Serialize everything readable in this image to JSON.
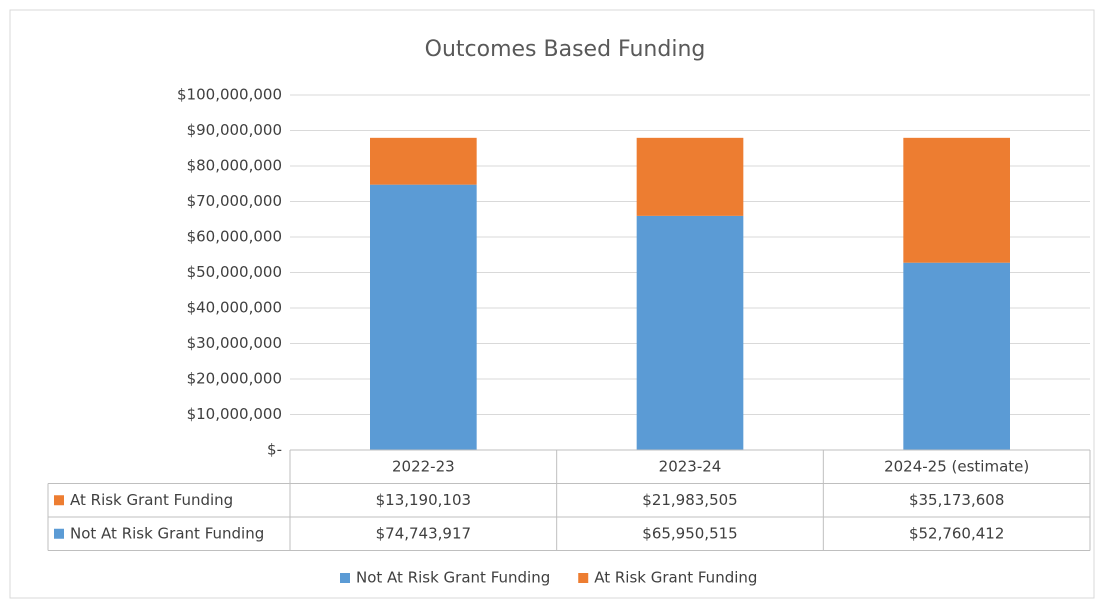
{
  "chart_data": {
    "type": "bar",
    "stacked": true,
    "title": "Outcomes Based Funding",
    "categories": [
      "2022-23",
      "2023-24",
      "2024-25 (estimate)"
    ],
    "series": [
      {
        "name": "Not At Risk Grant Funding",
        "color": "#5b9bd5",
        "values": [
          74743917,
          65950515,
          52760412
        ],
        "value_labels": [
          "$74,743,917",
          "$65,950,515",
          "$52,760,412"
        ]
      },
      {
        "name": "At Risk Grant Funding",
        "color": "#ed7d31",
        "values": [
          13190103,
          21983505,
          35173608
        ],
        "value_labels": [
          "$13,190,103",
          "$21,983,505",
          "$35,173,608"
        ]
      }
    ],
    "ylim": [
      0,
      100000000
    ],
    "yticks": [
      {
        "value": 0,
        "label": "$-"
      },
      {
        "value": 10000000,
        "label": "$10,000,000"
      },
      {
        "value": 20000000,
        "label": "$20,000,000"
      },
      {
        "value": 30000000,
        "label": "$30,000,000"
      },
      {
        "value": 40000000,
        "label": "$40,000,000"
      },
      {
        "value": 50000000,
        "label": "$50,000,000"
      },
      {
        "value": 60000000,
        "label": "$60,000,000"
      },
      {
        "value": 70000000,
        "label": "$70,000,000"
      },
      {
        "value": 80000000,
        "label": "$80,000,000"
      },
      {
        "value": 90000000,
        "label": "$90,000,000"
      },
      {
        "value": 100000000,
        "label": "$100,000,000"
      }
    ],
    "grid": true,
    "data_table": true,
    "legend": "bottom"
  }
}
